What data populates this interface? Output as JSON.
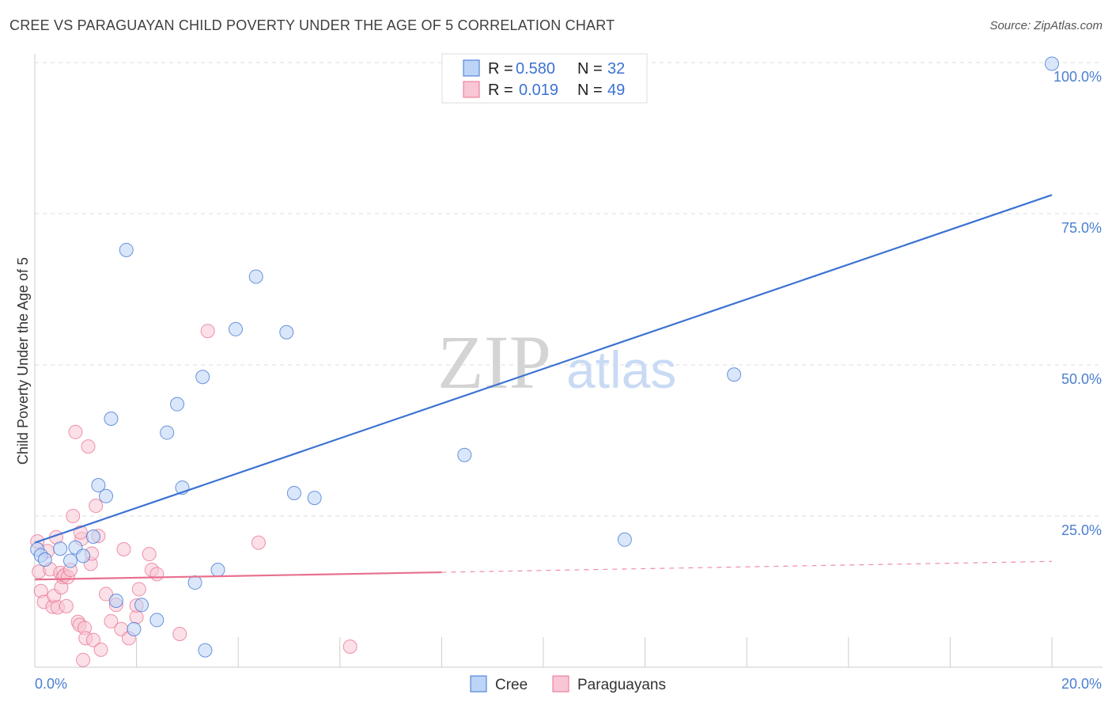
{
  "header": {
    "title": "CREE VS PARAGUAYAN CHILD POVERTY UNDER THE AGE OF 5 CORRELATION CHART",
    "source": "Source: ZipAtlas.com"
  },
  "watermark": {
    "zip": "ZIP",
    "atlas": "atlas"
  },
  "colors": {
    "cree": "#3b72d3",
    "cree_fill": "#bcd4f6",
    "paraguayan": "#e8708f",
    "paraguayan_fill": "#f8c6d4",
    "axis_label": "#4a7fd0",
    "grid": "#dddddd"
  },
  "chart_data": {
    "type": "scatter",
    "title": "CREE VS PARAGUAYAN CHILD POVERTY UNDER THE AGE OF 5 CORRELATION CHART",
    "xlabel": "",
    "ylabel": "Child Poverty Under the Age of 5",
    "xlim": [
      0,
      20
    ],
    "ylim": [
      0,
      100
    ],
    "x_tick_labels": [
      {
        "value": 0,
        "label": "0.0%"
      },
      {
        "value": 20,
        "label": "20.0%"
      }
    ],
    "y_tick_labels": [
      {
        "value": 25,
        "label": "25.0%"
      },
      {
        "value": 50,
        "label": "50.0%"
      },
      {
        "value": 75,
        "label": "75.0%"
      },
      {
        "value": 100,
        "label": "100.0%"
      }
    ],
    "legend": {
      "position": "top-center",
      "entries": [
        {
          "series": "Cree",
          "r_label": "R =",
          "r_value": "0.580",
          "n_label": "N =",
          "n_value": "32"
        },
        {
          "series": "Paraguayans",
          "r_label": "R =",
          "r_value": "0.019",
          "n_label": "N =",
          "n_value": "49"
        }
      ]
    },
    "bottom_legend": [
      "Cree",
      "Paraguayans"
    ],
    "series": [
      {
        "name": "Cree",
        "trend": {
          "x0": 0,
          "y0": 20.6,
          "x1": 20,
          "y1": 78.1,
          "dashed_from": null
        },
        "points": [
          [
            0.05,
            19.5
          ],
          [
            0.12,
            18.5
          ],
          [
            0.2,
            17.8
          ],
          [
            0.5,
            19.6
          ],
          [
            0.7,
            17.6
          ],
          [
            0.8,
            19.8
          ],
          [
            0.95,
            18.4
          ],
          [
            1.15,
            21.6
          ],
          [
            1.25,
            30.1
          ],
          [
            1.4,
            28.3
          ],
          [
            1.5,
            41.1
          ],
          [
            1.6,
            11.0
          ],
          [
            1.8,
            69.0
          ],
          [
            1.95,
            6.3
          ],
          [
            2.1,
            10.3
          ],
          [
            2.4,
            7.8
          ],
          [
            2.6,
            38.8
          ],
          [
            2.8,
            43.5
          ],
          [
            2.9,
            29.7
          ],
          [
            3.15,
            14.0
          ],
          [
            3.3,
            48.0
          ],
          [
            3.35,
            2.8
          ],
          [
            3.6,
            16.1
          ],
          [
            3.95,
            55.9
          ],
          [
            4.35,
            64.6
          ],
          [
            4.95,
            55.4
          ],
          [
            5.1,
            28.8
          ],
          [
            5.5,
            28.0
          ],
          [
            8.45,
            35.1
          ],
          [
            11.6,
            21.1
          ],
          [
            13.75,
            48.4
          ],
          [
            20.0,
            99.8
          ]
        ]
      },
      {
        "name": "Paraguayans",
        "trend": {
          "x0": 0,
          "y0": 14.5,
          "x1": 20,
          "y1": 17.5,
          "dashed_from": 8.0
        },
        "points": [
          [
            0.05,
            20.8
          ],
          [
            0.08,
            15.8
          ],
          [
            0.12,
            12.6
          ],
          [
            0.18,
            10.8
          ],
          [
            0.25,
            19.2
          ],
          [
            0.3,
            16.2
          ],
          [
            0.35,
            10.0
          ],
          [
            0.38,
            11.8
          ],
          [
            0.42,
            21.5
          ],
          [
            0.45,
            9.9
          ],
          [
            0.5,
            15.6
          ],
          [
            0.52,
            13.2
          ],
          [
            0.55,
            14.9
          ],
          [
            0.58,
            15.2
          ],
          [
            0.62,
            10.1
          ],
          [
            0.65,
            14.9
          ],
          [
            0.7,
            16.1
          ],
          [
            0.75,
            25.0
          ],
          [
            0.8,
            38.9
          ],
          [
            0.85,
            7.5
          ],
          [
            0.88,
            7.0
          ],
          [
            0.92,
            21.2
          ],
          [
            0.95,
            1.2
          ],
          [
            0.98,
            6.5
          ],
          [
            1.0,
            4.8
          ],
          [
            1.05,
            36.5
          ],
          [
            1.1,
            17.1
          ],
          [
            1.12,
            18.8
          ],
          [
            1.15,
            4.5
          ],
          [
            1.2,
            26.7
          ],
          [
            1.25,
            21.7
          ],
          [
            1.3,
            2.9
          ],
          [
            1.4,
            12.1
          ],
          [
            1.5,
            7.6
          ],
          [
            1.6,
            10.3
          ],
          [
            1.7,
            6.3
          ],
          [
            1.75,
            19.5
          ],
          [
            1.85,
            4.8
          ],
          [
            2.0,
            8.3
          ],
          [
            2.0,
            10.2
          ],
          [
            2.05,
            12.9
          ],
          [
            2.25,
            18.7
          ],
          [
            2.3,
            16.1
          ],
          [
            2.4,
            15.4
          ],
          [
            2.85,
            5.5
          ],
          [
            3.4,
            55.6
          ],
          [
            4.4,
            20.6
          ],
          [
            6.2,
            3.4
          ],
          [
            0.9,
            22.3
          ]
        ]
      }
    ]
  }
}
